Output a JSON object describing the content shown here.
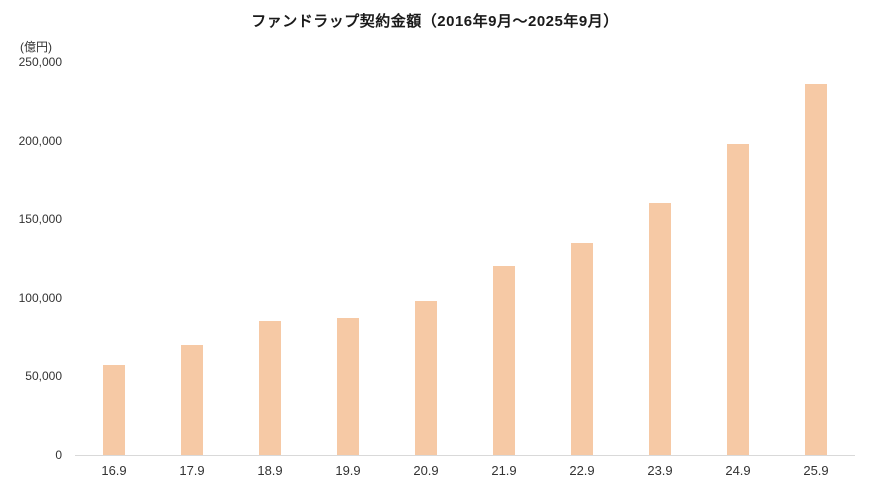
{
  "colors": {
    "bar": "#F6C9A5",
    "axis": "#D9D9D9",
    "text": "#404040"
  },
  "chart_data": {
    "type": "bar",
    "title": "ファンドラップ契約金額（2016年9月～2025年9月）",
    "ylabel": "(億円)",
    "xlabel": "",
    "categories": [
      "16.9",
      "17.9",
      "18.9",
      "19.9",
      "20.9",
      "21.9",
      "22.9",
      "23.9",
      "24.9",
      "25.9"
    ],
    "values": [
      57000,
      70000,
      85000,
      87000,
      98000,
      120000,
      135000,
      160000,
      198000,
      236000
    ],
    "ylim": [
      0,
      250000
    ],
    "yticks": [
      0,
      50000,
      100000,
      150000,
      200000,
      250000
    ],
    "ytick_labels": [
      "0",
      "50,000",
      "100,000",
      "150,000",
      "200,000",
      "250,000"
    ],
    "grid": false,
    "legend": "none"
  }
}
